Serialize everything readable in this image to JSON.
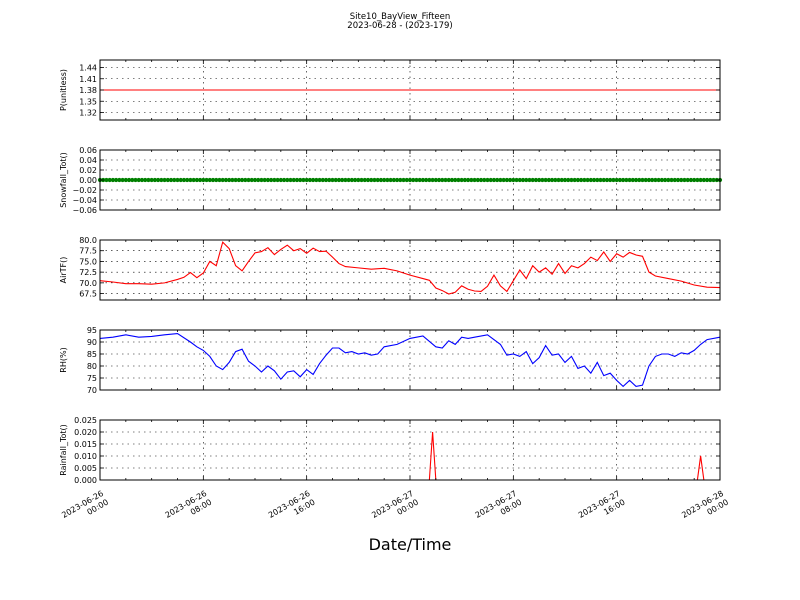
{
  "figure": {
    "title_line1": "Site10_BayView_Fifteen",
    "title_line2": "2023-06-28 - (2023-179)",
    "xlabel": "Date/Time"
  },
  "x_axis": {
    "range": [
      "2023-06-26 00:00",
      "2023-06-28 00:00"
    ],
    "ticks": [
      {
        "time": "2023-06-26 00:00",
        "label_date": "2023-06-26",
        "label_time": "00:00"
      },
      {
        "time": "2023-06-26 08:00",
        "label_date": "2023-06-26",
        "label_time": "08:00"
      },
      {
        "time": "2023-06-26 16:00",
        "label_date": "2023-06-26",
        "label_time": "16:00"
      },
      {
        "time": "2023-06-27 00:00",
        "label_date": "2023-06-27",
        "label_time": "00:00"
      },
      {
        "time": "2023-06-27 08:00",
        "label_date": "2023-06-27",
        "label_time": "08:00"
      },
      {
        "time": "2023-06-27 16:00",
        "label_date": "2023-06-27",
        "label_time": "16:00"
      },
      {
        "time": "2023-06-28 00:00",
        "label_date": "2023-06-28",
        "label_time": "00:00"
      }
    ]
  },
  "chart_data": [
    {
      "type": "line",
      "ylabel": "P(unitless)",
      "ylim": [
        1.3,
        1.46
      ],
      "yticks": [
        "1.32",
        "1.35",
        "1.38",
        "1.41",
        "1.44"
      ],
      "color": "#ff0000",
      "grid": true,
      "series": [
        {
          "name": "",
          "x": [
            "2023-06-26 00:00",
            "2023-06-28 00:00"
          ],
          "y": [
            1.38,
            1.38
          ]
        }
      ]
    },
    {
      "type": "scatter",
      "ylabel": "Snowfall_Tot()",
      "ylim": [
        -0.06,
        0.06
      ],
      "yticks": [
        "0.06",
        "0.04",
        "0.02",
        "0.00",
        "−0.02",
        "−0.04",
        "−0.06"
      ],
      "color": "#008000",
      "grid": true,
      "series": [
        {
          "name": "",
          "x": [
            "2023-06-26 00:00",
            "2023-06-28 00:00"
          ],
          "y": [
            0.0,
            0.0
          ],
          "note": "constant 0.00 at 15-min interval"
        }
      ]
    },
    {
      "type": "line",
      "ylabel": "AirTF()",
      "ylim": [
        66,
        80
      ],
      "yticks": [
        "80.0",
        "77.5",
        "75.0",
        "72.5",
        "70.0",
        "67.5"
      ],
      "color": "#ff0000",
      "grid": true,
      "series": [
        {
          "name": "",
          "x_hours": [
            0,
            1,
            2,
            3,
            4,
            5,
            6,
            6.5,
            7,
            7.5,
            8,
            8.5,
            9,
            9.5,
            10,
            10.5,
            11,
            11.5,
            12,
            12.5,
            13,
            13.5,
            14,
            14.5,
            15,
            15.5,
            16,
            16.5,
            17,
            17.5,
            18,
            18.5,
            19,
            20,
            21,
            22,
            23,
            24,
            25,
            25.5,
            26,
            26.5,
            27,
            27.5,
            28,
            28.5,
            29,
            29.5,
            30,
            30.5,
            31,
            31.5,
            32,
            32.5,
            33,
            33.5,
            34,
            34.5,
            35,
            35.5,
            36,
            36.5,
            37,
            37.5,
            38,
            38.5,
            39,
            39.5,
            40,
            40.5,
            41,
            41.5,
            42,
            42.5,
            43,
            44,
            45,
            46,
            47,
            48
          ],
          "y": [
            70.5,
            70.2,
            69.8,
            69.8,
            69.7,
            70.0,
            70.8,
            71.3,
            72.4,
            71.2,
            72.3,
            75.0,
            74.0,
            79.5,
            78.0,
            74.0,
            72.8,
            75.0,
            77.0,
            77.3,
            78.2,
            76.6,
            77.8,
            78.8,
            77.5,
            78.0,
            76.9,
            78.1,
            77.3,
            77.4,
            76.0,
            74.5,
            73.8,
            73.5,
            73.2,
            73.4,
            72.8,
            71.8,
            71.0,
            70.6,
            68.8,
            68.2,
            67.4,
            67.8,
            69.3,
            68.5,
            68.1,
            68.0,
            69.2,
            71.8,
            69.3,
            68.0,
            70.5,
            73.0,
            71.0,
            74.0,
            72.5,
            73.5,
            72.0,
            74.5,
            72.2,
            74.0,
            73.5,
            74.5,
            76.0,
            75.2,
            77.2,
            75.0,
            76.8,
            76.0,
            77.1,
            76.5,
            76.2,
            72.5,
            71.6,
            71.0,
            70.4,
            69.5,
            69.0,
            68.9
          ]
        }
      ]
    },
    {
      "type": "line",
      "ylabel": "RH(%)",
      "ylim": [
        70,
        95
      ],
      "yticks": [
        "95",
        "90",
        "85",
        "80",
        "75",
        "70"
      ],
      "color": "#0000ff",
      "grid": true,
      "series": [
        {
          "name": "",
          "x_hours": [
            0,
            1,
            2,
            3,
            4,
            5,
            6,
            7,
            7.5,
            8,
            8.5,
            9,
            9.5,
            10,
            10.5,
            11,
            11.5,
            12,
            12.5,
            13,
            13.5,
            14,
            14.5,
            15,
            15.5,
            16,
            16.5,
            17,
            17.5,
            18,
            18.5,
            19,
            19.5,
            20,
            20.5,
            21,
            21.5,
            22,
            23,
            24,
            25,
            26,
            26.5,
            27,
            27.5,
            28,
            28.5,
            29,
            30,
            31,
            31.5,
            32,
            32.5,
            33,
            33.5,
            34,
            34.5,
            35,
            35.5,
            36,
            36.5,
            37,
            37.5,
            38,
            38.5,
            39,
            39.5,
            40,
            40.5,
            41,
            41.5,
            42,
            42.5,
            43,
            43.5,
            44,
            44.5,
            45,
            45.5,
            46,
            46.5,
            47,
            48
          ],
          "y": [
            91.5,
            92.0,
            93.0,
            92.0,
            92.3,
            93.0,
            93.5,
            90.0,
            88.0,
            86.5,
            84.0,
            80.0,
            78.5,
            81.5,
            86.0,
            87.0,
            82.0,
            80.0,
            77.5,
            80.0,
            78.0,
            74.5,
            77.5,
            78.0,
            75.5,
            78.5,
            76.5,
            81.0,
            84.5,
            87.5,
            87.5,
            85.5,
            86.0,
            85.0,
            85.5,
            84.5,
            85.0,
            88.0,
            89.0,
            91.5,
            92.5,
            88.0,
            87.5,
            90.5,
            89.0,
            92.0,
            91.5,
            92.0,
            93.0,
            89.0,
            84.5,
            85.0,
            84.0,
            86.0,
            81.0,
            83.5,
            88.5,
            84.5,
            85.0,
            81.5,
            84.0,
            79.0,
            80.0,
            77.0,
            81.5,
            76.0,
            77.0,
            74.0,
            71.5,
            74.0,
            71.5,
            72.0,
            80.0,
            84.0,
            85.0,
            85.0,
            84.0,
            85.5,
            85.0,
            86.5,
            89.0,
            91.0,
            92.0
          ]
        }
      ]
    },
    {
      "type": "line",
      "ylabel": "Rainfall_Tot()",
      "ylim": [
        0,
        0.025
      ],
      "yticks": [
        "0.025",
        "0.020",
        "0.015",
        "0.010",
        "0.005",
        "0.000"
      ],
      "color": "#ff0000",
      "grid": true,
      "series": [
        {
          "name": "",
          "x_hours": [
            0,
            25.5,
            25.75,
            26.0,
            46.25,
            46.5,
            46.75,
            48
          ],
          "y": [
            0,
            0,
            0.02,
            0,
            0,
            0.01,
            0,
            0
          ]
        }
      ]
    }
  ]
}
